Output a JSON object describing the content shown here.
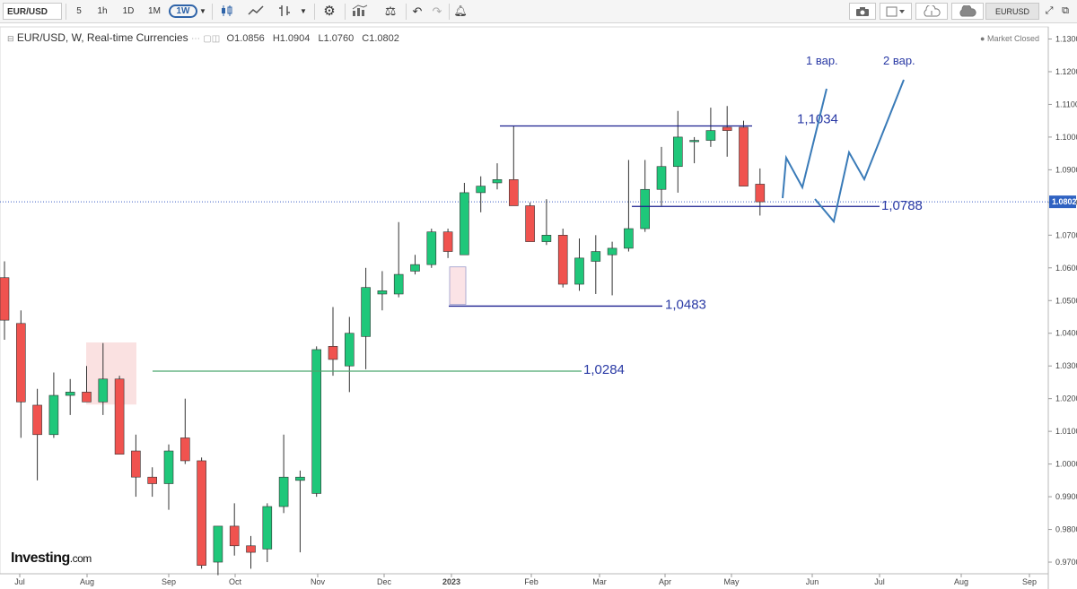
{
  "toolbar": {
    "symbol": "EUR/USD",
    "intervals": [
      "5",
      "1h",
      "1D",
      "1M"
    ],
    "active_interval": "1W",
    "copy_label": "EURUSD copy"
  },
  "legend": {
    "title": "EUR/USD, W, Real-time Currencies",
    "open": "O1.0856",
    "high": "H1.0904",
    "low": "L1.0760",
    "close": "C1.0802",
    "status": "Market Closed"
  },
  "logo": {
    "main": "Investing",
    "suffix": ".com"
  },
  "colors": {
    "up": "#1fc77a",
    "down": "#f0534f",
    "hline": "#1a1f8f",
    "hline_green": "#4aa66e",
    "forecast": "#3a7bb8",
    "annotation": "#2a3aa5"
  },
  "chart_data": {
    "type": "candlestick",
    "title": "EUR/USD, W, Real-time Currencies",
    "ylim": [
      0.965,
      1.135
    ],
    "y_ticks": [
      "1.1300",
      "1.1200",
      "1.1100",
      "1.1000",
      "1.0900",
      "1.0800",
      "1.0700",
      "1.0600",
      "1.0500",
      "1.0400",
      "1.0300",
      "1.0200",
      "1.0100",
      "1.0000",
      "0.9900",
      "0.9800",
      "0.9700"
    ],
    "x_ticks": [
      "Jul",
      "Aug",
      "Sep",
      "Oct",
      "Nov",
      "Dec",
      "2023",
      "Feb",
      "Mar",
      "Apr",
      "May",
      "Jun",
      "Jul",
      "Aug",
      "Sep"
    ],
    "current_price": "1.0802",
    "candles": [
      {
        "o": 1.057,
        "h": 1.062,
        "l": 1.038,
        "c": 1.044
      },
      {
        "o": 1.043,
        "h": 1.047,
        "l": 1.008,
        "c": 1.019
      },
      {
        "o": 1.018,
        "h": 1.023,
        "l": 0.995,
        "c": 1.009
      },
      {
        "o": 1.009,
        "h": 1.028,
        "l": 1.008,
        "c": 1.021
      },
      {
        "o": 1.021,
        "h": 1.026,
        "l": 1.015,
        "c": 1.022
      },
      {
        "o": 1.022,
        "h": 1.03,
        "l": 1.019,
        "c": 1.019
      },
      {
        "o": 1.019,
        "h": 1.037,
        "l": 1.015,
        "c": 1.026
      },
      {
        "o": 1.026,
        "h": 1.027,
        "l": 1.003,
        "c": 1.003
      },
      {
        "o": 1.004,
        "h": 1.009,
        "l": 0.99,
        "c": 0.996
      },
      {
        "o": 0.996,
        "h": 0.999,
        "l": 0.99,
        "c": 0.994
      },
      {
        "o": 0.994,
        "h": 1.006,
        "l": 0.986,
        "c": 1.004
      },
      {
        "o": 1.008,
        "h": 1.02,
        "l": 1.0,
        "c": 1.001
      },
      {
        "o": 1.001,
        "h": 1.002,
        "l": 0.968,
        "c": 0.969
      },
      {
        "o": 0.97,
        "h": 0.981,
        "l": 0.966,
        "c": 0.981
      },
      {
        "o": 0.981,
        "h": 0.988,
        "l": 0.972,
        "c": 0.975
      },
      {
        "o": 0.975,
        "h": 0.978,
        "l": 0.968,
        "c": 0.973
      },
      {
        "o": 0.974,
        "h": 0.988,
        "l": 0.97,
        "c": 0.987
      },
      {
        "o": 0.987,
        "h": 1.009,
        "l": 0.985,
        "c": 0.996
      },
      {
        "o": 0.995,
        "h": 0.998,
        "l": 0.973,
        "c": 0.996
      },
      {
        "o": 0.991,
        "h": 1.036,
        "l": 0.99,
        "c": 1.035
      },
      {
        "o": 1.036,
        "h": 1.048,
        "l": 1.027,
        "c": 1.032
      },
      {
        "o": 1.03,
        "h": 1.045,
        "l": 1.022,
        "c": 1.04
      },
      {
        "o": 1.039,
        "h": 1.06,
        "l": 1.029,
        "c": 1.054
      },
      {
        "o": 1.052,
        "h": 1.059,
        "l": 1.047,
        "c": 1.053
      },
      {
        "o": 1.052,
        "h": 1.074,
        "l": 1.051,
        "c": 1.058
      },
      {
        "o": 1.059,
        "h": 1.064,
        "l": 1.058,
        "c": 1.061
      },
      {
        "o": 1.061,
        "h": 1.072,
        "l": 1.06,
        "c": 1.071
      },
      {
        "o": 1.071,
        "h": 1.072,
        "l": 1.063,
        "c": 1.065
      },
      {
        "o": 1.064,
        "h": 1.086,
        "l": 1.064,
        "c": 1.083
      },
      {
        "o": 1.083,
        "h": 1.088,
        "l": 1.077,
        "c": 1.085
      },
      {
        "o": 1.086,
        "h": 1.092,
        "l": 1.084,
        "c": 1.087
      },
      {
        "o": 1.087,
        "h": 1.1034,
        "l": 1.08,
        "c": 1.079
      },
      {
        "o": 1.079,
        "h": 1.08,
        "l": 1.069,
        "c": 1.068
      },
      {
        "o": 1.068,
        "h": 1.081,
        "l": 1.067,
        "c": 1.07
      },
      {
        "o": 1.07,
        "h": 1.072,
        "l": 1.054,
        "c": 1.055
      },
      {
        "o": 1.055,
        "h": 1.069,
        "l": 1.053,
        "c": 1.063
      },
      {
        "o": 1.062,
        "h": 1.07,
        "l": 1.052,
        "c": 1.065
      },
      {
        "o": 1.064,
        "h": 1.068,
        "l": 1.0516,
        "c": 1.066
      },
      {
        "o": 1.066,
        "h": 1.093,
        "l": 1.065,
        "c": 1.072
      },
      {
        "o": 1.072,
        "h": 1.093,
        "l": 1.071,
        "c": 1.084
      },
      {
        "o": 1.084,
        "h": 1.097,
        "l": 1.079,
        "c": 1.091
      },
      {
        "o": 1.091,
        "h": 1.108,
        "l": 1.083,
        "c": 1.1
      },
      {
        "o": 1.099,
        "h": 1.1,
        "l": 1.092,
        "c": 1.099
      },
      {
        "o": 1.099,
        "h": 1.109,
        "l": 1.097,
        "c": 1.102
      },
      {
        "o": 1.103,
        "h": 1.1095,
        "l": 1.094,
        "c": 1.102
      },
      {
        "o": 1.103,
        "h": 1.105,
        "l": 1.085,
        "c": 1.085
      },
      {
        "o": 1.0856,
        "h": 1.0904,
        "l": 1.076,
        "c": 1.0802
      }
    ],
    "levels": [
      {
        "value": 1.1034,
        "label": "1,1034"
      },
      {
        "value": 1.0788,
        "label": "1,0788"
      },
      {
        "value": 1.0483,
        "label": "1,0483"
      },
      {
        "value": 1.0284,
        "label": "1,0284"
      }
    ],
    "annotations": [
      "1 вар.",
      "2 вар."
    ]
  }
}
